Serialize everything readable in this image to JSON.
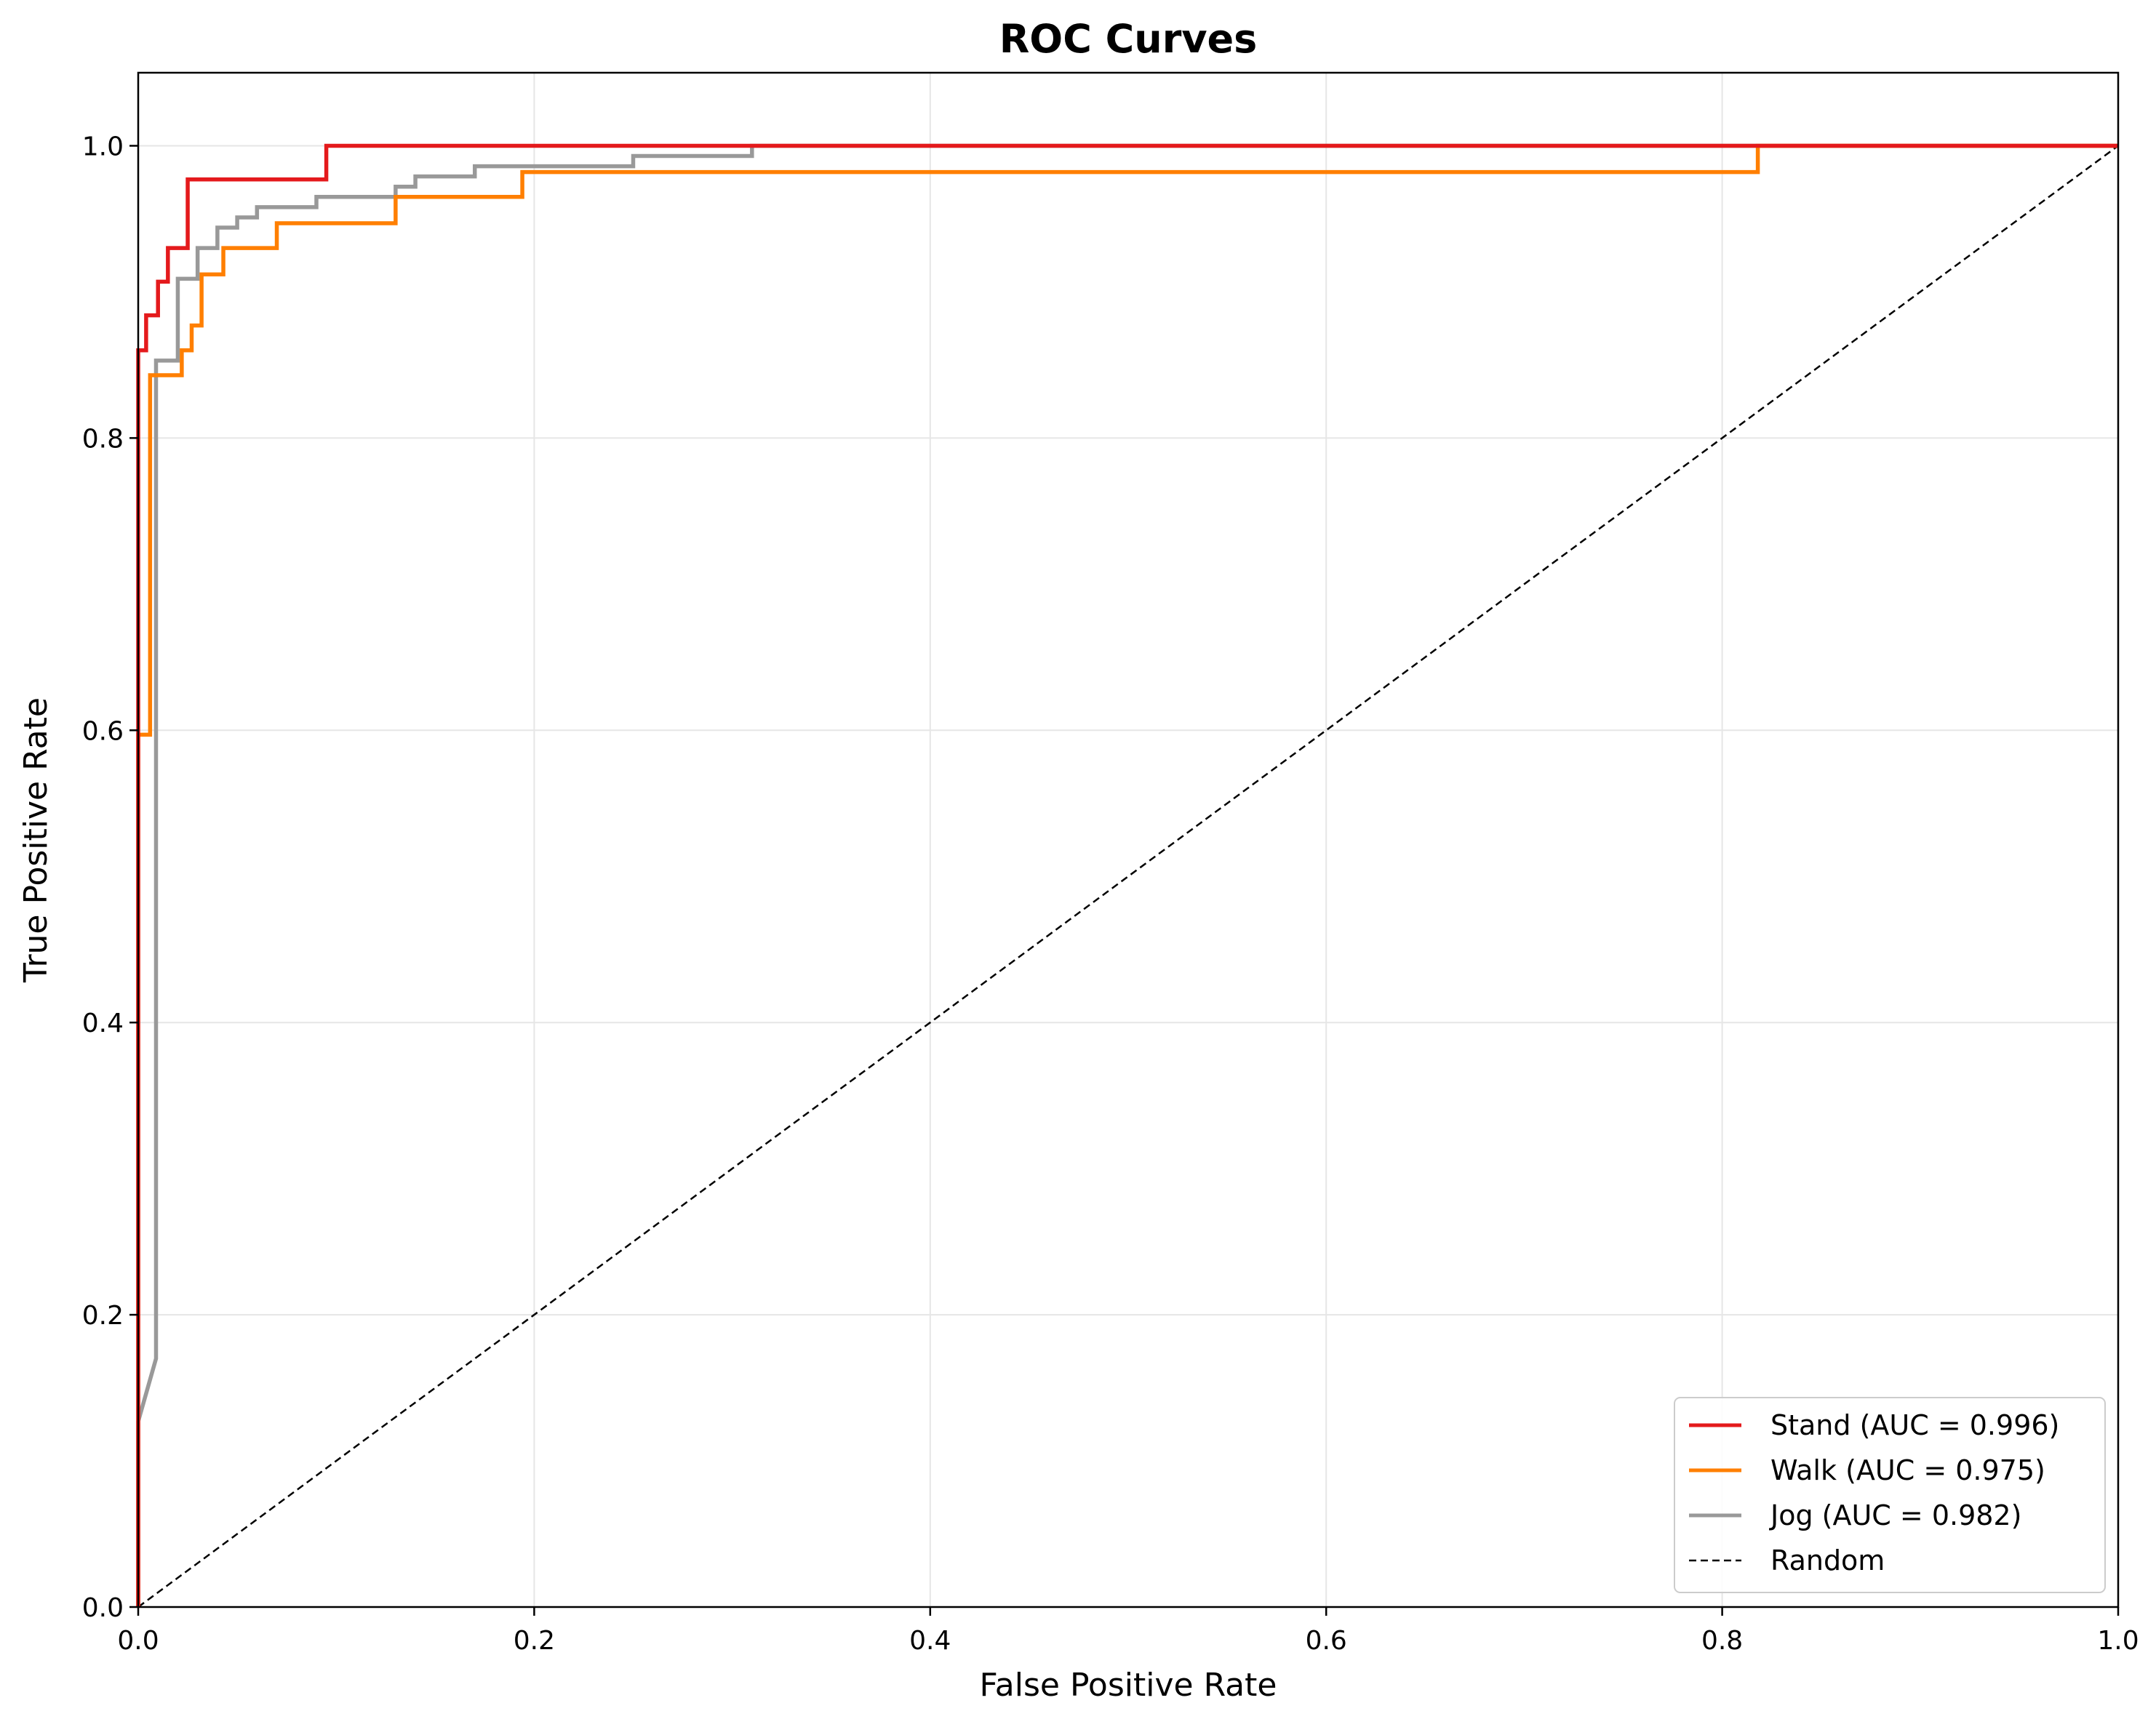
{
  "chart_data": {
    "type": "line",
    "title": "ROC Curves",
    "xlabel": "False Positive Rate",
    "ylabel": "True Positive Rate",
    "xlim": [
      0.0,
      1.0
    ],
    "ylim": [
      0.0,
      1.05
    ],
    "xticks": [
      "0.0",
      "0.2",
      "0.4",
      "0.6",
      "0.8",
      "1.0"
    ],
    "yticks": [
      "0.0",
      "0.2",
      "0.4",
      "0.6",
      "0.8",
      "1.0"
    ],
    "grid": true,
    "legend_position": "lower-right",
    "series": [
      {
        "name": "Stand (AUC = 0.996)",
        "color": "#e41a1c",
        "points": [
          [
            0.0,
            0.0
          ],
          [
            0.0,
            0.86
          ],
          [
            0.004,
            0.86
          ],
          [
            0.004,
            0.884
          ],
          [
            0.01,
            0.884
          ],
          [
            0.01,
            0.907
          ],
          [
            0.015,
            0.907
          ],
          [
            0.015,
            0.93
          ],
          [
            0.025,
            0.93
          ],
          [
            0.025,
            0.977
          ],
          [
            0.095,
            0.977
          ],
          [
            0.095,
            1.0
          ],
          [
            0.31,
            1.0
          ],
          [
            1.0,
            1.0
          ]
        ]
      },
      {
        "name": "Walk (AUC = 0.975)",
        "color": "#ff7f00",
        "points": [
          [
            0.0,
            0.0
          ],
          [
            0.0,
            0.597
          ],
          [
            0.006,
            0.597
          ],
          [
            0.006,
            0.843
          ],
          [
            0.022,
            0.843
          ],
          [
            0.022,
            0.86
          ],
          [
            0.027,
            0.86
          ],
          [
            0.027,
            0.877
          ],
          [
            0.032,
            0.877
          ],
          [
            0.032,
            0.912
          ],
          [
            0.043,
            0.912
          ],
          [
            0.043,
            0.93
          ],
          [
            0.07,
            0.93
          ],
          [
            0.07,
            0.947
          ],
          [
            0.13,
            0.947
          ],
          [
            0.13,
            0.965
          ],
          [
            0.194,
            0.965
          ],
          [
            0.194,
            0.982
          ],
          [
            0.818,
            0.982
          ],
          [
            0.818,
            1.0
          ],
          [
            1.0,
            1.0
          ]
        ]
      },
      {
        "name": "Jog (AUC = 0.982)",
        "color": "#999999",
        "points": [
          [
            0.0,
            0.0
          ],
          [
            0.0,
            0.127
          ],
          [
            0.009,
            0.17
          ],
          [
            0.009,
            0.853
          ],
          [
            0.02,
            0.853
          ],
          [
            0.02,
            0.909
          ],
          [
            0.03,
            0.909
          ],
          [
            0.03,
            0.93
          ],
          [
            0.04,
            0.93
          ],
          [
            0.04,
            0.944
          ],
          [
            0.05,
            0.944
          ],
          [
            0.05,
            0.951
          ],
          [
            0.06,
            0.951
          ],
          [
            0.06,
            0.958
          ],
          [
            0.09,
            0.958
          ],
          [
            0.09,
            0.965
          ],
          [
            0.13,
            0.965
          ],
          [
            0.13,
            0.972
          ],
          [
            0.14,
            0.972
          ],
          [
            0.14,
            0.979
          ],
          [
            0.17,
            0.979
          ],
          [
            0.17,
            0.986
          ],
          [
            0.25,
            0.986
          ],
          [
            0.25,
            0.993
          ],
          [
            0.31,
            0.993
          ],
          [
            0.31,
            1.0
          ],
          [
            1.0,
            1.0
          ]
        ]
      }
    ],
    "reference_line": {
      "name": "Random",
      "color": "#000000",
      "style": "dashed",
      "points": [
        [
          0.0,
          0.0
        ],
        [
          1.0,
          1.0
        ]
      ]
    }
  }
}
